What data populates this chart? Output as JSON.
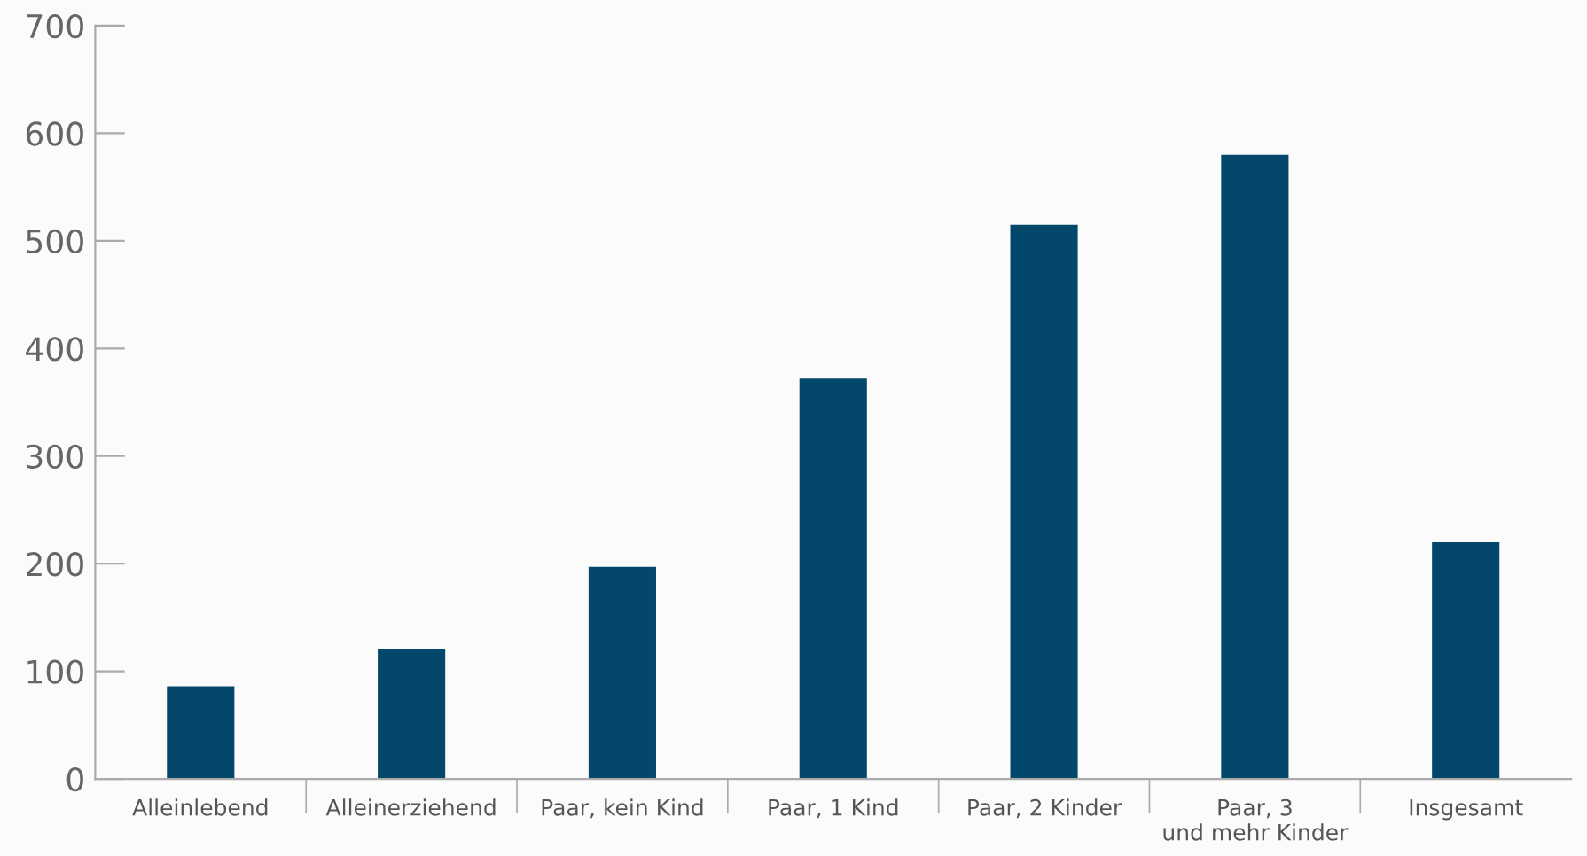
{
  "chart_data": {
    "type": "bar",
    "categories": [
      "Alleinlebend",
      "Alleinerziehend",
      "Paar, kein Kind",
      "Paar, 1 Kind",
      "Paar, 2 Kinder",
      "Paar, 3\nund mehr Kinder",
      "Insgesamt"
    ],
    "values": [
      86,
      121,
      197,
      372,
      515,
      580,
      220
    ],
    "color": "#03476a",
    "ylim": [
      0,
      700
    ],
    "yticks": [
      0,
      100,
      200,
      300,
      400,
      500,
      600,
      700
    ],
    "grid": false
  }
}
